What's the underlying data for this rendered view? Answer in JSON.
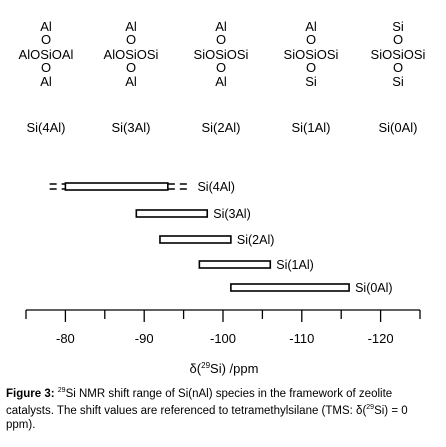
{
  "structures": [
    {
      "top": "Al",
      "bridge_top": "O",
      "middle": "AlOSiOAl",
      "bridge_bottom": "O",
      "bottom": "Al",
      "label": "Si(4Al)"
    },
    {
      "top": "Al",
      "bridge_top": "O",
      "middle": "AlOSiOSi",
      "bridge_bottom": "O",
      "bottom": "Al",
      "label": "Si(3Al)"
    },
    {
      "top": "Al",
      "bridge_top": "O",
      "middle": "SiOSiOSi",
      "bridge_bottom": "O",
      "bottom": "Al",
      "label": "Si(2Al)"
    },
    {
      "top": "Al",
      "bridge_top": "O",
      "middle": "SiOSiOSi",
      "bridge_bottom": "O",
      "bottom": "Si",
      "label": "Si(1Al)"
    },
    {
      "top": "Si",
      "bridge_top": "O",
      "middle": "SiOSiOSi",
      "bridge_bottom": "O",
      "bottom": "Si",
      "label": "Si(0Al)"
    }
  ],
  "ranges": [
    {
      "label": "Si(4Al)",
      "from": -80,
      "to": -93,
      "dashed_from": -78,
      "dashed_to": -96
    },
    {
      "label": "Si(3Al)",
      "from": -89,
      "to": -98
    },
    {
      "label": "Si(2Al)",
      "from": -92,
      "to": -101
    },
    {
      "label": "Si(1Al)",
      "from": -97,
      "to": -106
    },
    {
      "label": "Si(0Al)",
      "from": -101,
      "to": -116
    }
  ],
  "axis": {
    "ticks": [
      -80,
      -90,
      -100,
      -110,
      -120
    ],
    "tick_labels": [
      "-80",
      "-90",
      "-100",
      "-110",
      "-120"
    ],
    "min": -75,
    "max": -125,
    "label_prefix": "δ(",
    "label_sup": "29",
    "label_suffix": "Si) /ppm"
  },
  "caption": {
    "figure": "Figure 3:",
    "sup": "29",
    "text": "Si NMR shift range of Si(nAl) species in the framework of zeolite catalysts.  The shift values are referenced to tetramethylsilane (TMS: δ(",
    "sup2": "29",
    "text_end": "Si) = 0 ppm)."
  }
}
